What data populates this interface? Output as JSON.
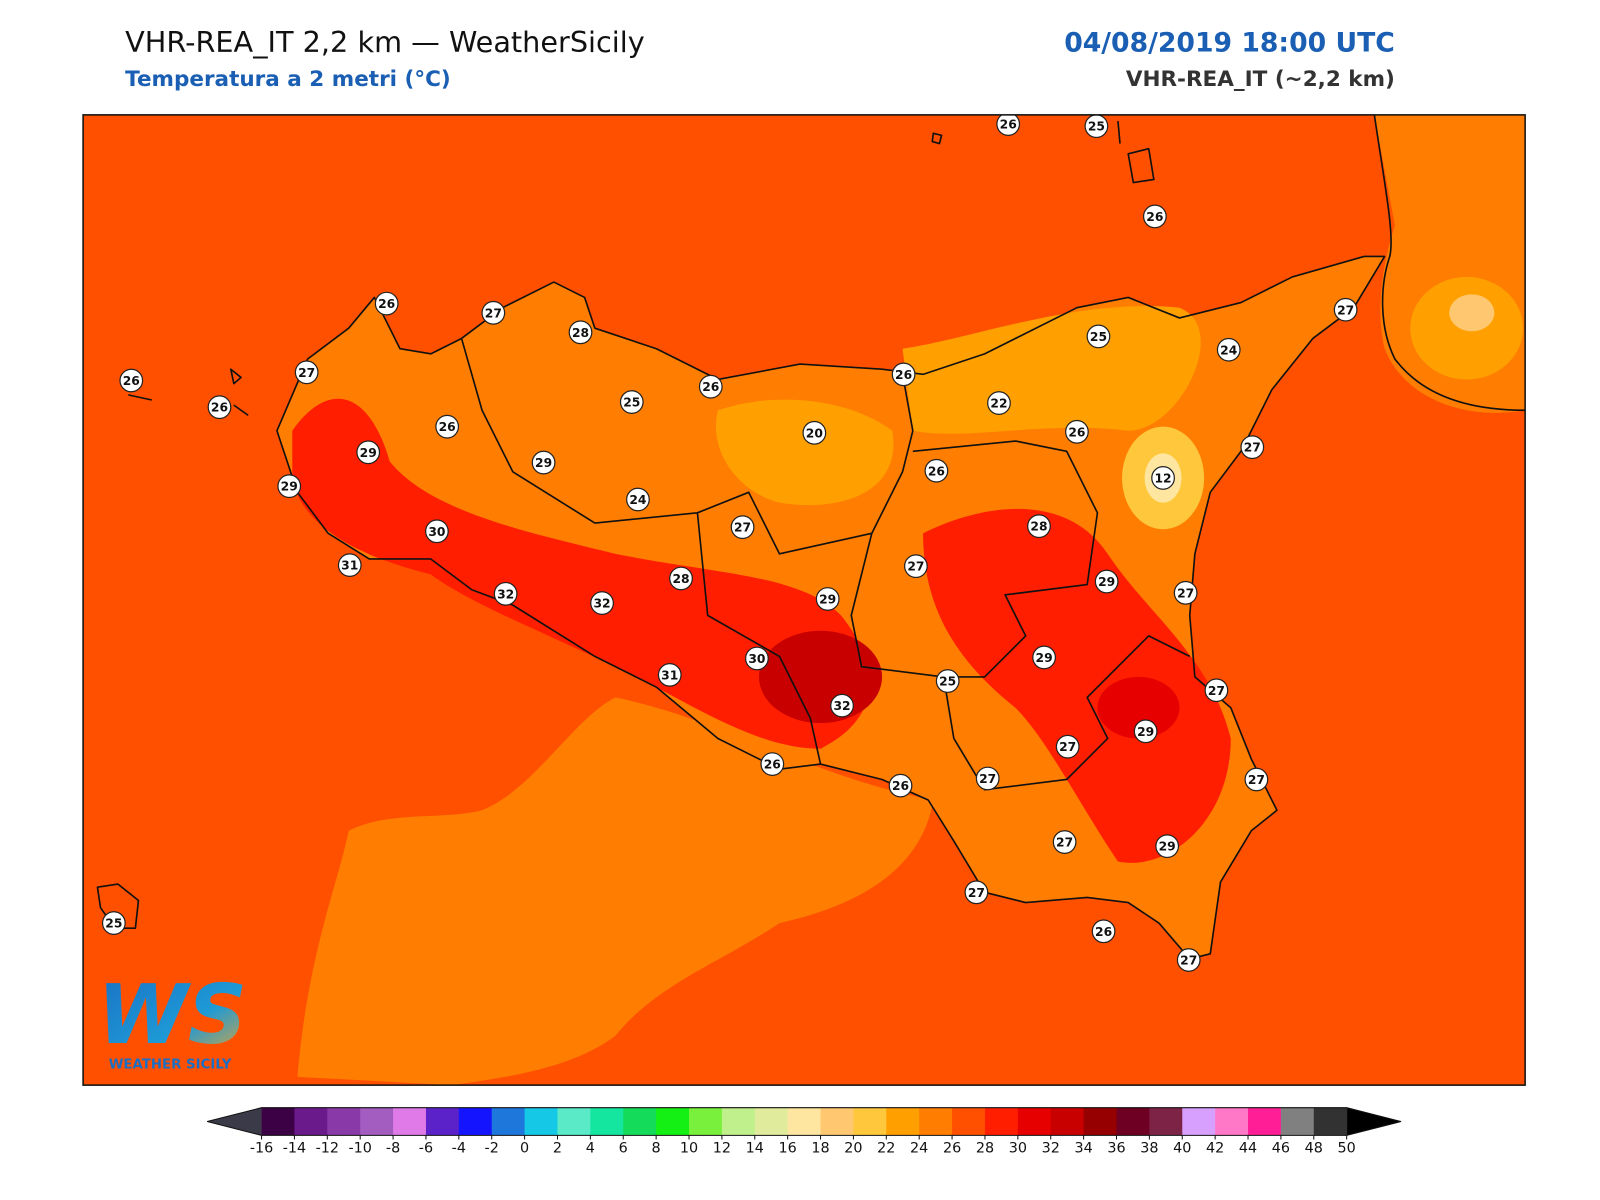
{
  "header": {
    "title": "VHR-REA_IT 2,2 km — WeatherSicily",
    "subtitle": "Temperatura a 2 metri (°C)",
    "datetime": "04/08/2019 18:00 UTC",
    "model": "VHR-REA_IT (~2,2 km)"
  },
  "stations": {
    "values": [
      26,
      25,
      26,
      26,
      27,
      28,
      26,
      27,
      26,
      25,
      26,
      26,
      25,
      24,
      27,
      22,
      20,
      26,
      27,
      26,
      29,
      29,
      29,
      26,
      12,
      24,
      30,
      27,
      28,
      31,
      27,
      29,
      27,
      32,
      32,
      28,
      29,
      29,
      30,
      31,
      25,
      27,
      32,
      27,
      29,
      26,
      26,
      27,
      27,
      27,
      29,
      27,
      26,
      27,
      25
    ]
  },
  "colorbar": {
    "ticks": [
      -16,
      -14,
      -12,
      -10,
      -8,
      -6,
      -4,
      -2,
      0,
      2,
      4,
      6,
      8,
      10,
      12,
      14,
      16,
      18,
      20,
      22,
      24,
      26,
      28,
      30,
      32,
      34,
      36,
      38,
      40,
      42,
      44,
      46,
      48,
      50
    ],
    "colors": [
      "#3c0045",
      "#6a1a8a",
      "#8a3aa8",
      "#a35cc0",
      "#e07ae8",
      "#5a22c8",
      "#1414ff",
      "#1e78dc",
      "#14c8e6",
      "#5aeac8",
      "#14e6a0",
      "#14dc5a",
      "#14f014",
      "#78f03c",
      "#c0f08c",
      "#e0eb9c",
      "#ffe6a0",
      "#ffc870",
      "#ffc83c",
      "#ffa000",
      "#ff7d00",
      "#ff5000",
      "#ff1e00",
      "#e60000",
      "#c80000",
      "#960000",
      "#6e0023",
      "#7d2346",
      "#d7a0ff",
      "#ff78c8",
      "#ff1e96",
      "#808080",
      "#323232"
    ],
    "under": "#3a3a48",
    "over": "#000000"
  },
  "logo": {
    "text": "WS",
    "tagline": "WEATHER SICILY"
  }
}
